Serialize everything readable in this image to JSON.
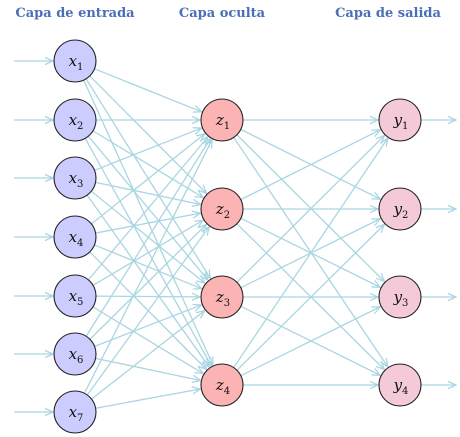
{
  "titles": {
    "input": "Capa de entrada",
    "hidden": "Capa oculta",
    "output": "Capa de salida"
  },
  "layers": {
    "input": {
      "color": "#ccccff",
      "nodes": [
        {
          "var": "x",
          "sub": "1"
        },
        {
          "var": "x",
          "sub": "2"
        },
        {
          "var": "x",
          "sub": "3"
        },
        {
          "var": "x",
          "sub": "4"
        },
        {
          "var": "x",
          "sub": "5"
        },
        {
          "var": "x",
          "sub": "6"
        },
        {
          "var": "x",
          "sub": "7"
        }
      ]
    },
    "hidden": {
      "color": "#fbb3b3",
      "nodes": [
        {
          "var": "z",
          "sub": "1"
        },
        {
          "var": "z",
          "sub": "2"
        },
        {
          "var": "z",
          "sub": "3"
        },
        {
          "var": "z",
          "sub": "4"
        }
      ]
    },
    "output": {
      "color": "#f5cad8",
      "nodes": [
        {
          "var": "y",
          "sub": "1"
        },
        {
          "var": "y",
          "sub": "2"
        },
        {
          "var": "y",
          "sub": "3"
        },
        {
          "var": "y",
          "sub": "4"
        }
      ]
    }
  },
  "edge_color": "#a9d6e2"
}
